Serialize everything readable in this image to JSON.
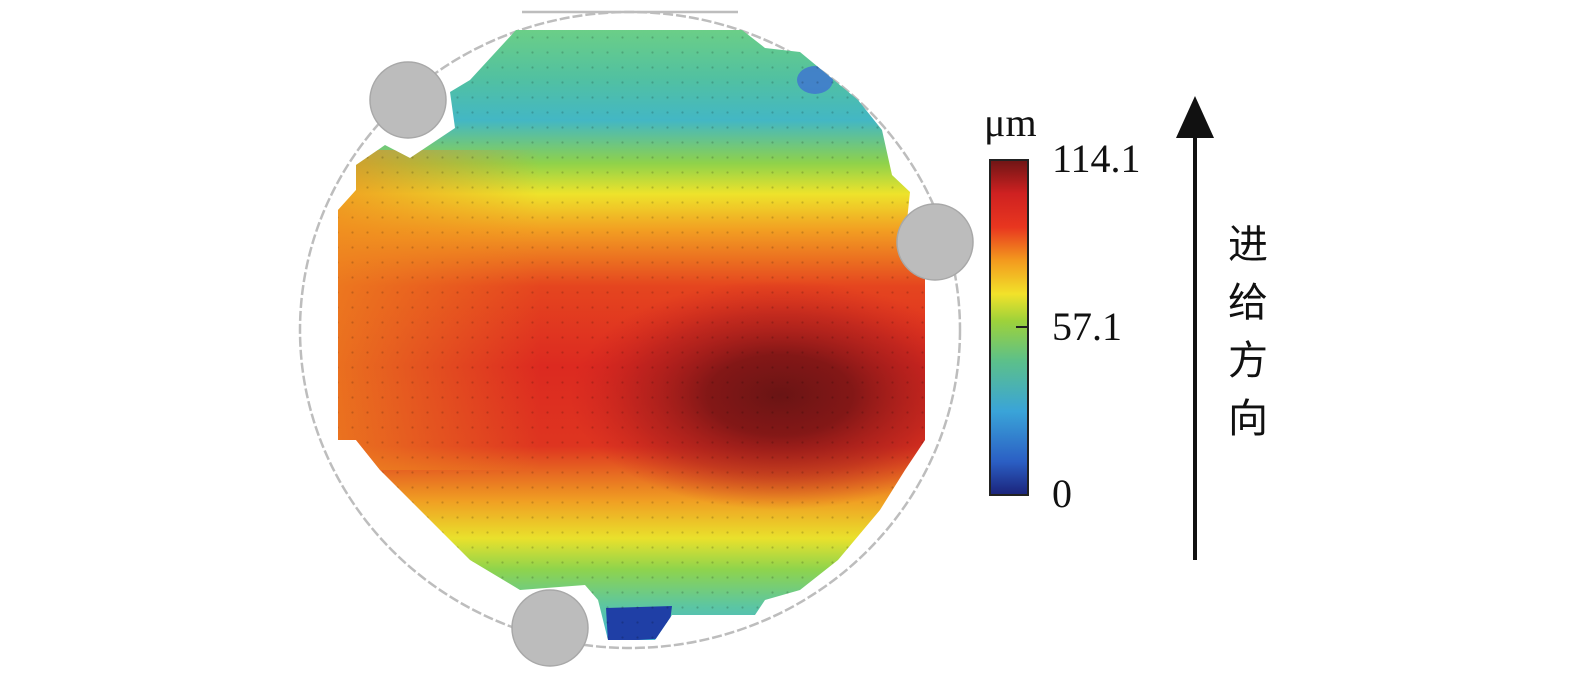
{
  "chart_data": {
    "type": "heatmap",
    "unit": "μm",
    "colorbar": {
      "min": 0,
      "max": 114.1,
      "ticks": [
        "114.1",
        "57.1",
        "0"
      ],
      "colors": [
        "#1b237a",
        "#2b5fc4",
        "#3aa4d8",
        "#5cc08a",
        "#9ed23a",
        "#f2e22a",
        "#f39a1e",
        "#e8361f",
        "#cf2121",
        "#6e1515"
      ]
    },
    "field": {
      "description_shape": "circular wafer with three circular clamps",
      "peak_value": 114.1,
      "low_regions_values": [
        20,
        30
      ]
    },
    "direction_label": [
      "进",
      "给",
      "方",
      "向"
    ]
  }
}
